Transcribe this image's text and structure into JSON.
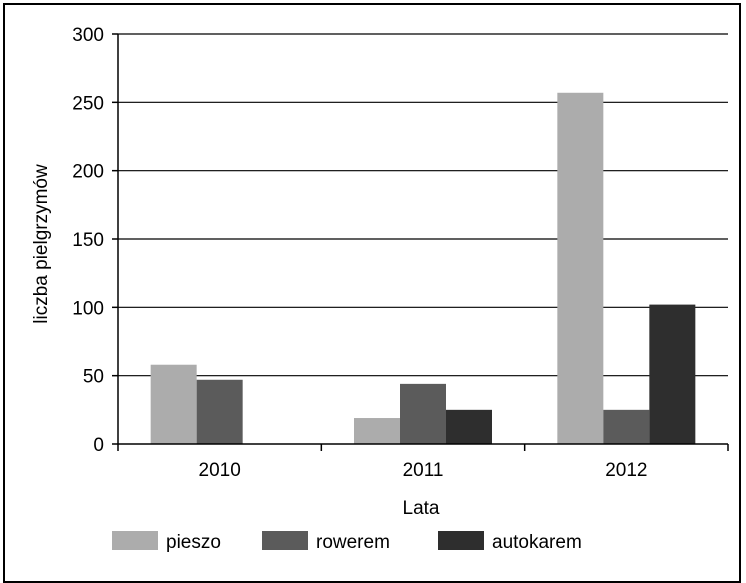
{
  "chart_data": {
    "type": "bar",
    "title": "",
    "xlabel": "Lata",
    "ylabel": "liczba pielgrzymów",
    "categories": [
      "2010",
      "2011",
      "2012"
    ],
    "ylim": [
      0,
      300
    ],
    "yticks": [
      0,
      50,
      100,
      150,
      200,
      250,
      300
    ],
    "grid": true,
    "legend_position": "bottom",
    "series": [
      {
        "name": "pieszo",
        "values": [
          58,
          19,
          257
        ],
        "color": "#acacac"
      },
      {
        "name": "rowerem",
        "values": [
          47,
          44,
          25
        ],
        "color": "#5b5b5b"
      },
      {
        "name": "autokarem",
        "values": [
          0,
          25,
          102
        ],
        "color": "#2e2e2e"
      }
    ]
  }
}
